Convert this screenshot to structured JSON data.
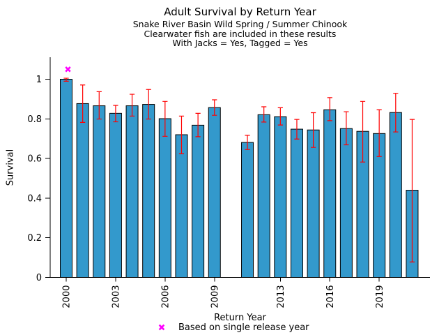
{
  "header": {
    "title": "Adult Survival by Return Year",
    "subtitle1": "Snake River Basin Wild Spring / Summer Chinook",
    "subtitle2": "Clearwater fish are included in these results",
    "subtitle3": "With Jacks = Yes, Tagged = Yes"
  },
  "legend": {
    "marker_icon": "magenta-x-marker",
    "text": "Based on single release year"
  },
  "colors": {
    "bar_fill": "#3399CC",
    "bar_edge": "#000000",
    "error_bar": "#FF0000",
    "marker": "#FF00FF",
    "axis": "#000000",
    "background": "#FFFFFF"
  },
  "chart_data": {
    "type": "bar",
    "title": "Adult Survival by Return Year",
    "xlabel": "Return Year",
    "ylabel": "Survival",
    "ylim": [
      0,
      1.11
    ],
    "grid": false,
    "legend_position": "bottom-center",
    "y_ticks": [
      {
        "value": 0,
        "label": "0"
      },
      {
        "value": 0.2,
        "label": "0.2"
      },
      {
        "value": 0.4,
        "label": "0.4"
      },
      {
        "value": 0.6,
        "label": "0.6"
      },
      {
        "value": 0.8,
        "label": "0.8"
      },
      {
        "value": 1,
        "label": "1"
      }
    ],
    "x_ticks": [
      {
        "year": 2000,
        "label": "2000"
      },
      {
        "year": 2003,
        "label": "2003"
      },
      {
        "year": 2006,
        "label": "2006"
      },
      {
        "year": 2009,
        "label": "2009"
      },
      {
        "year": 2013,
        "label": "2013"
      },
      {
        "year": 2016,
        "label": "2016"
      },
      {
        "year": 2019,
        "label": "2019"
      }
    ],
    "series": [
      {
        "year": 2000,
        "survival": 1.0,
        "ci_low": 0.99,
        "ci_high": 1.005
      },
      {
        "year": 2001,
        "survival": 0.877,
        "ci_low": 0.782,
        "ci_high": 0.971
      },
      {
        "year": 2002,
        "survival": 0.866,
        "ci_low": 0.799,
        "ci_high": 0.937
      },
      {
        "year": 2003,
        "survival": 0.828,
        "ci_low": 0.785,
        "ci_high": 0.868
      },
      {
        "year": 2004,
        "survival": 0.866,
        "ci_low": 0.814,
        "ci_high": 0.924
      },
      {
        "year": 2005,
        "survival": 0.873,
        "ci_low": 0.799,
        "ci_high": 0.948
      },
      {
        "year": 2006,
        "survival": 0.801,
        "ci_low": 0.712,
        "ci_high": 0.888
      },
      {
        "year": 2007,
        "survival": 0.72,
        "ci_low": 0.624,
        "ci_high": 0.814
      },
      {
        "year": 2008,
        "survival": 0.768,
        "ci_low": 0.71,
        "ci_high": 0.828
      },
      {
        "year": 2009,
        "survival": 0.857,
        "ci_low": 0.818,
        "ci_high": 0.896
      },
      {
        "year": 2011,
        "survival": 0.681,
        "ci_low": 0.645,
        "ci_high": 0.717
      },
      {
        "year": 2012,
        "survival": 0.821,
        "ci_low": 0.784,
        "ci_high": 0.861
      },
      {
        "year": 2013,
        "survival": 0.811,
        "ci_low": 0.769,
        "ci_high": 0.856
      },
      {
        "year": 2014,
        "survival": 0.748,
        "ci_low": 0.698,
        "ci_high": 0.797
      },
      {
        "year": 2015,
        "survival": 0.744,
        "ci_low": 0.656,
        "ci_high": 0.831
      },
      {
        "year": 2016,
        "survival": 0.846,
        "ci_low": 0.791,
        "ci_high": 0.907
      },
      {
        "year": 2017,
        "survival": 0.751,
        "ci_low": 0.669,
        "ci_high": 0.836
      },
      {
        "year": 2018,
        "survival": 0.737,
        "ci_low": 0.582,
        "ci_high": 0.888
      },
      {
        "year": 2019,
        "survival": 0.726,
        "ci_low": 0.61,
        "ci_high": 0.846
      },
      {
        "year": 2020,
        "survival": 0.832,
        "ci_low": 0.734,
        "ci_high": 0.929
      },
      {
        "year": 2021,
        "survival": 0.44,
        "ci_low": 0.078,
        "ci_high": 0.797
      }
    ],
    "single_release_points": [
      {
        "year": 2000,
        "value": 1.05
      }
    ],
    "missing_years": [
      2010
    ]
  }
}
